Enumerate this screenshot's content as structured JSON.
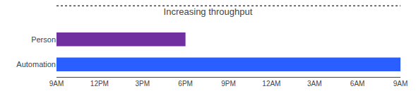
{
  "chart_data": {
    "type": "bar",
    "orientation": "horizontal",
    "title": "Increasing throughput",
    "categories": [
      "Person",
      "Automation"
    ],
    "values": [
      9,
      24
    ],
    "colors": [
      "#7030A0",
      "#2B5EFF"
    ],
    "xlim": [
      0,
      24
    ],
    "xticks": [
      {
        "value": 0,
        "label": "9AM"
      },
      {
        "value": 3,
        "label": "12PM"
      },
      {
        "value": 6,
        "label": "3PM"
      },
      {
        "value": 9,
        "label": "6PM"
      },
      {
        "value": 12,
        "label": "9PM"
      },
      {
        "value": 15,
        "label": "12AM"
      },
      {
        "value": 18,
        "label": "3AM"
      },
      {
        "value": 21,
        "label": "6AM"
      },
      {
        "value": 24,
        "label": "9AM"
      }
    ],
    "grid": false
  }
}
